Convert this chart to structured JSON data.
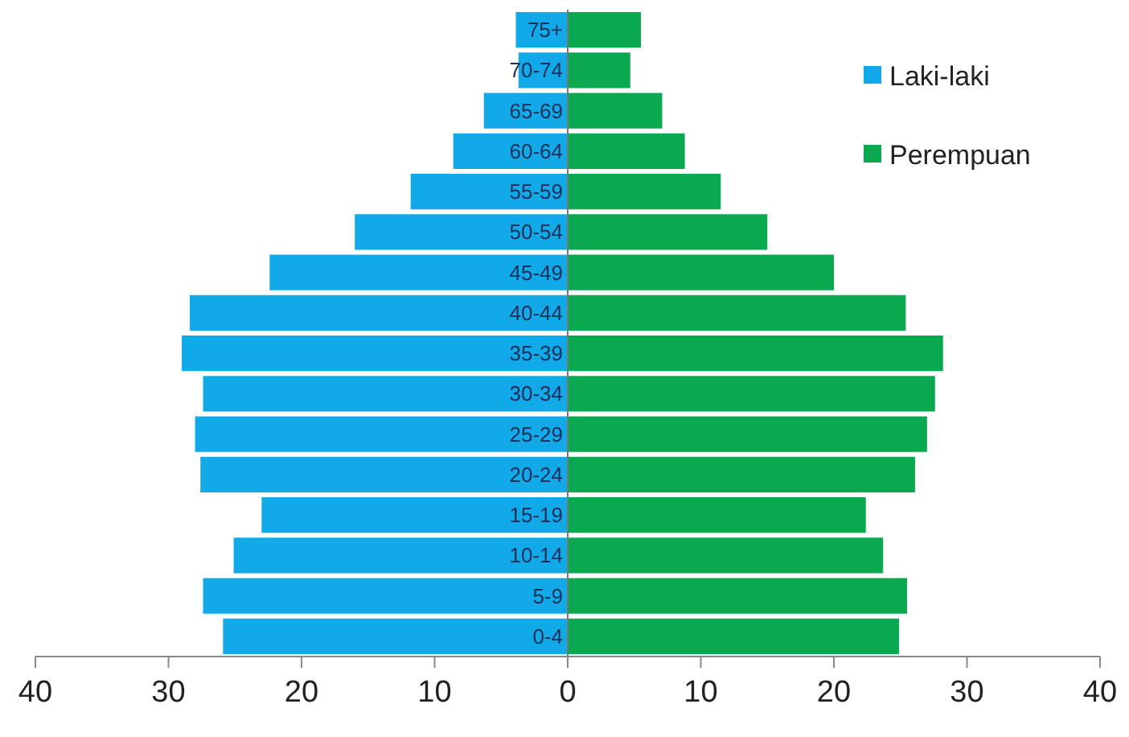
{
  "chart_data": {
    "type": "bar",
    "orientation": "horizontal",
    "stacked": true,
    "categories": [
      "75+",
      "70-74",
      "65-69",
      "60-64",
      "55-59",
      "50-54",
      "45-49",
      "40-44",
      "35-39",
      "30-34",
      "25-29",
      "20-24",
      "15-19",
      "10-14",
      "5-9",
      "0-4"
    ],
    "series": [
      {
        "name": "Laki-laki",
        "color": "#12a9e8",
        "values": [
          -3.9,
          -3.7,
          -6.3,
          -8.6,
          -11.8,
          -16.0,
          -22.4,
          -28.4,
          -29.0,
          -27.4,
          -28.0,
          -27.6,
          -23.0,
          -25.1,
          -27.4,
          -25.9
        ]
      },
      {
        "name": "Perempuan",
        "color": "#0aa84f",
        "values": [
          5.5,
          4.7,
          7.1,
          8.8,
          11.5,
          15.0,
          20.0,
          25.4,
          28.2,
          27.6,
          27.0,
          26.1,
          22.4,
          23.7,
          25.5,
          24.9
        ]
      }
    ],
    "xlim": [
      -40,
      40
    ],
    "xticks": [
      {
        "value": -40,
        "label": "40"
      },
      {
        "value": -30,
        "label": "30"
      },
      {
        "value": -20,
        "label": "20"
      },
      {
        "value": -10,
        "label": "10"
      },
      0,
      10,
      20,
      30,
      40
    ],
    "grid": false,
    "legend": "top right"
  }
}
